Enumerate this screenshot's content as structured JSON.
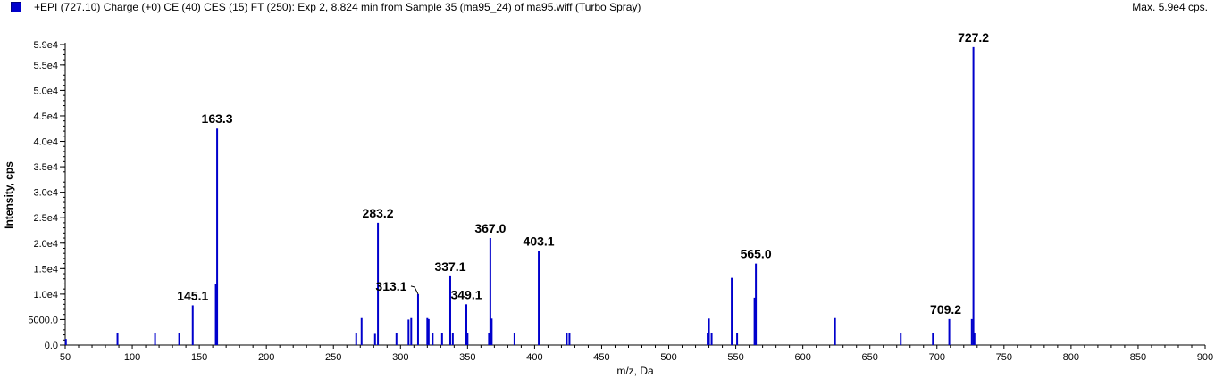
{
  "header": {
    "title": "+EPI (727.10) Charge (+0) CE (40) CES (15) FT (250): Exp 2, 8.824 min from Sample 35 (ma95_24) of ma95.wiff (Turbo Spray)",
    "max_label": "Max. 5.9e4 cps.",
    "legend_color": "#0000cc"
  },
  "chart_data": {
    "type": "bar",
    "xlabel": "m/z, Da",
    "ylabel": "Intensity, cps",
    "xlim": [
      50,
      900
    ],
    "ylim": [
      0,
      59000
    ],
    "x_ticks": [
      50,
      100,
      150,
      200,
      250,
      300,
      350,
      400,
      450,
      500,
      550,
      600,
      650,
      700,
      750,
      800,
      850,
      900
    ],
    "y_ticks": [
      {
        "value": 0,
        "label": "0.0"
      },
      {
        "value": 5000,
        "label": "5000.0"
      },
      {
        "value": 10000,
        "label": "1.0e4"
      },
      {
        "value": 15000,
        "label": "1.5e4"
      },
      {
        "value": 20000,
        "label": "2.0e4"
      },
      {
        "value": 25000,
        "label": "2.5e4"
      },
      {
        "value": 30000,
        "label": "3.0e4"
      },
      {
        "value": 35000,
        "label": "3.5e4"
      },
      {
        "value": 40000,
        "label": "4.0e4"
      },
      {
        "value": 45000,
        "label": "4.5e4"
      },
      {
        "value": 50000,
        "label": "5.0e4"
      },
      {
        "value": 55000,
        "label": "5.5e4"
      },
      {
        "value": 59000,
        "label": "5.9e4"
      }
    ],
    "series_color": "#0000cc",
    "peaks": [
      {
        "mz": 50.5,
        "intensity": 1200
      },
      {
        "mz": 89,
        "intensity": 2400
      },
      {
        "mz": 117,
        "intensity": 2300
      },
      {
        "mz": 135,
        "intensity": 2300
      },
      {
        "mz": 145.1,
        "intensity": 7800
      },
      {
        "mz": 162.3,
        "intensity": 12000
      },
      {
        "mz": 163.3,
        "intensity": 42500
      },
      {
        "mz": 267,
        "intensity": 2300
      },
      {
        "mz": 271,
        "intensity": 5300
      },
      {
        "mz": 281,
        "intensity": 2200
      },
      {
        "mz": 283.2,
        "intensity": 24000
      },
      {
        "mz": 297,
        "intensity": 2400
      },
      {
        "mz": 306,
        "intensity": 5000
      },
      {
        "mz": 308,
        "intensity": 5300
      },
      {
        "mz": 313.1,
        "intensity": 10000
      },
      {
        "mz": 320,
        "intensity": 5300
      },
      {
        "mz": 321,
        "intensity": 5100
      },
      {
        "mz": 324,
        "intensity": 2300
      },
      {
        "mz": 331,
        "intensity": 2300
      },
      {
        "mz": 337.1,
        "intensity": 13500
      },
      {
        "mz": 339,
        "intensity": 2300
      },
      {
        "mz": 349.1,
        "intensity": 8000
      },
      {
        "mz": 350,
        "intensity": 2300
      },
      {
        "mz": 366,
        "intensity": 2300
      },
      {
        "mz": 367.0,
        "intensity": 21000
      },
      {
        "mz": 368,
        "intensity": 5200
      },
      {
        "mz": 385,
        "intensity": 2400
      },
      {
        "mz": 403.1,
        "intensity": 18500
      },
      {
        "mz": 424,
        "intensity": 2300
      },
      {
        "mz": 426,
        "intensity": 2300
      },
      {
        "mz": 529,
        "intensity": 2300
      },
      {
        "mz": 530,
        "intensity": 5200
      },
      {
        "mz": 532,
        "intensity": 2300
      },
      {
        "mz": 547,
        "intensity": 13200
      },
      {
        "mz": 551,
        "intensity": 2300
      },
      {
        "mz": 564,
        "intensity": 9300
      },
      {
        "mz": 565.0,
        "intensity": 16000
      },
      {
        "mz": 624,
        "intensity": 5300
      },
      {
        "mz": 673,
        "intensity": 2400
      },
      {
        "mz": 697,
        "intensity": 2400
      },
      {
        "mz": 709.2,
        "intensity": 5100
      },
      {
        "mz": 726,
        "intensity": 5100
      },
      {
        "mz": 727.2,
        "intensity": 58500
      },
      {
        "mz": 728,
        "intensity": 2400
      }
    ],
    "peak_labels": [
      {
        "text": "145.1",
        "mz": 145.1,
        "intensity": 7800
      },
      {
        "text": "163.3",
        "mz": 163.3,
        "intensity": 42500
      },
      {
        "text": "283.2",
        "mz": 283.2,
        "intensity": 24000
      },
      {
        "text": "313.1",
        "mz": 313.1,
        "intensity": 10000
      },
      {
        "text": "337.1",
        "mz": 337.1,
        "intensity": 13500
      },
      {
        "text": "349.1",
        "mz": 349.1,
        "intensity": 8000
      },
      {
        "text": "367.0",
        "mz": 367.0,
        "intensity": 21000
      },
      {
        "text": "403.1",
        "mz": 403.1,
        "intensity": 18500
      },
      {
        "text": "565.0",
        "mz": 565.0,
        "intensity": 16000
      },
      {
        "text": "709.2",
        "mz": 709.2,
        "intensity": 5100
      },
      {
        "text": "727.2",
        "mz": 727.2,
        "intensity": 58500
      }
    ]
  }
}
